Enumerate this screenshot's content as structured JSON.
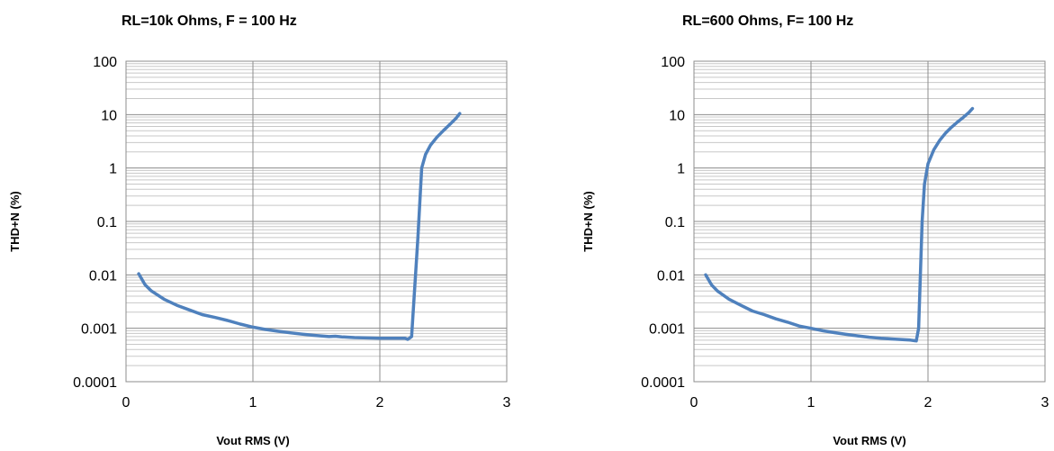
{
  "chart_data": [
    {
      "type": "line",
      "title": "RL=10k Ohms, F = 100 Hz",
      "xlabel": "Vout RMS (V)",
      "ylabel": "THD+N (%)",
      "xlim": [
        0,
        3
      ],
      "ylim": [
        0.0001,
        100
      ],
      "yscale": "log",
      "grid": true,
      "x_ticks": [
        "0",
        "1",
        "2",
        "3"
      ],
      "y_ticks": [
        "0.0001",
        "0.001",
        "0.01",
        "0.1",
        "1",
        "10",
        "100"
      ],
      "series_color": "#4f81bd",
      "series": [
        {
          "x": [
            0.1,
            0.15,
            0.2,
            0.3,
            0.4,
            0.5,
            0.6,
            0.7,
            0.8,
            0.9,
            1.0,
            1.1,
            1.2,
            1.3,
            1.4,
            1.5,
            1.6,
            1.65,
            1.7,
            1.8,
            1.9,
            2.0,
            2.1,
            2.2,
            2.22,
            2.25,
            2.3,
            2.33,
            2.36,
            2.4,
            2.45,
            2.5,
            2.55,
            2.6,
            2.63
          ],
          "y": [
            0.0105,
            0.0065,
            0.005,
            0.0035,
            0.0027,
            0.0022,
            0.0018,
            0.0016,
            0.0014,
            0.0012,
            0.00105,
            0.00095,
            0.00088,
            0.00082,
            0.00077,
            0.00073,
            0.0007,
            0.00071,
            0.00069,
            0.00067,
            0.00066,
            0.00065,
            0.00065,
            0.00065,
            0.00062,
            0.0007,
            0.05,
            1.0,
            1.8,
            2.7,
            3.8,
            5.0,
            6.5,
            8.5,
            10.5
          ]
        }
      ]
    },
    {
      "type": "line",
      "title": "RL=600 Ohms, F= 100 Hz",
      "xlabel": "Vout RMS (V)",
      "ylabel": "THD+N (%)",
      "xlim": [
        0,
        3
      ],
      "ylim": [
        0.0001,
        100
      ],
      "yscale": "log",
      "grid": true,
      "x_ticks": [
        "0",
        "1",
        "2",
        "3"
      ],
      "y_ticks": [
        "0.0001",
        "0.001",
        "0.01",
        "0.1",
        "1",
        "10",
        "100"
      ],
      "series_color": "#4f81bd",
      "series": [
        {
          "x": [
            0.1,
            0.15,
            0.2,
            0.3,
            0.4,
            0.5,
            0.6,
            0.7,
            0.8,
            0.9,
            1.0,
            1.1,
            1.2,
            1.3,
            1.4,
            1.5,
            1.6,
            1.7,
            1.8,
            1.85,
            1.9,
            1.92,
            1.95,
            1.97,
            2.0,
            2.05,
            2.1,
            2.15,
            2.2,
            2.25,
            2.3,
            2.35,
            2.38
          ],
          "y": [
            0.01,
            0.0065,
            0.005,
            0.0035,
            0.0027,
            0.0021,
            0.0018,
            0.0015,
            0.0013,
            0.0011,
            0.001,
            0.0009,
            0.00083,
            0.00077,
            0.00072,
            0.00068,
            0.00065,
            0.00063,
            0.00061,
            0.0006,
            0.00058,
            0.001,
            0.1,
            0.5,
            1.2,
            2.2,
            3.3,
            4.5,
            5.8,
            7.2,
            8.8,
            11.0,
            13.0
          ]
        }
      ]
    }
  ]
}
